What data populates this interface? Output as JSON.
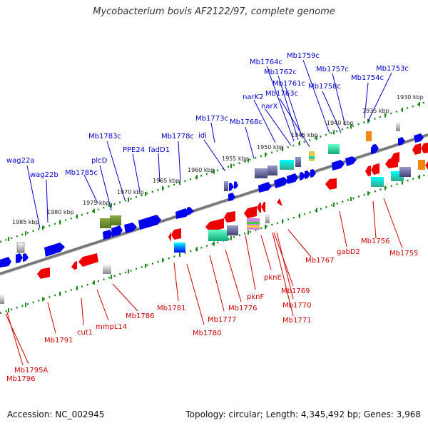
{
  "header": {
    "title": "Mycobacterium bovis AF2122/97, complete genome"
  },
  "footer": {
    "accession": "Accession: NC_002945",
    "summary": "Topology: circular; Length: 4,345,492 bp; Genes: 3,968"
  },
  "ticks": [
    "1930 kbp",
    "1935 kbp",
    "1940 kbp",
    "1945 kbp",
    "1950 kbp",
    "1955 kbp",
    "1960 kbp",
    "1965 kbp",
    "1970 kbp",
    "1975 kbp",
    "1980 kbp",
    "1985 kbp"
  ],
  "labels_forward": [
    "wag22a",
    "wag22b",
    "Mb1785c",
    "plcD",
    "Mb1783c",
    "PPE24",
    "fadD1",
    "Mb1778c",
    "idi",
    "Mb1773c",
    "Mb1768c",
    "narK2",
    "narX",
    "Mb1764c",
    "Mb1762c",
    "Mb1761c",
    "Mb1763c",
    "Mb1759c",
    "Mb1758c",
    "Mb1757c",
    "Mb1754c",
    "Mb1753c"
  ],
  "labels_reverse": [
    "Mb1795A",
    "Mb1796",
    "Mb1791",
    "cut1",
    "mmpL14",
    "Mb1786",
    "Mb1781",
    "Mb1780",
    "Mb1777",
    "Mb1776",
    "pknF",
    "pknE",
    "Mb1769",
    "Mb1770",
    "Mb1771",
    "Mb1767",
    "gabD2",
    "Mb1756",
    "Mb1755"
  ],
  "colors": {
    "forward_label": "#0000cc",
    "reverse_label": "#cc0000",
    "backbone": "#888888",
    "ring": "#1a8a1a"
  }
}
